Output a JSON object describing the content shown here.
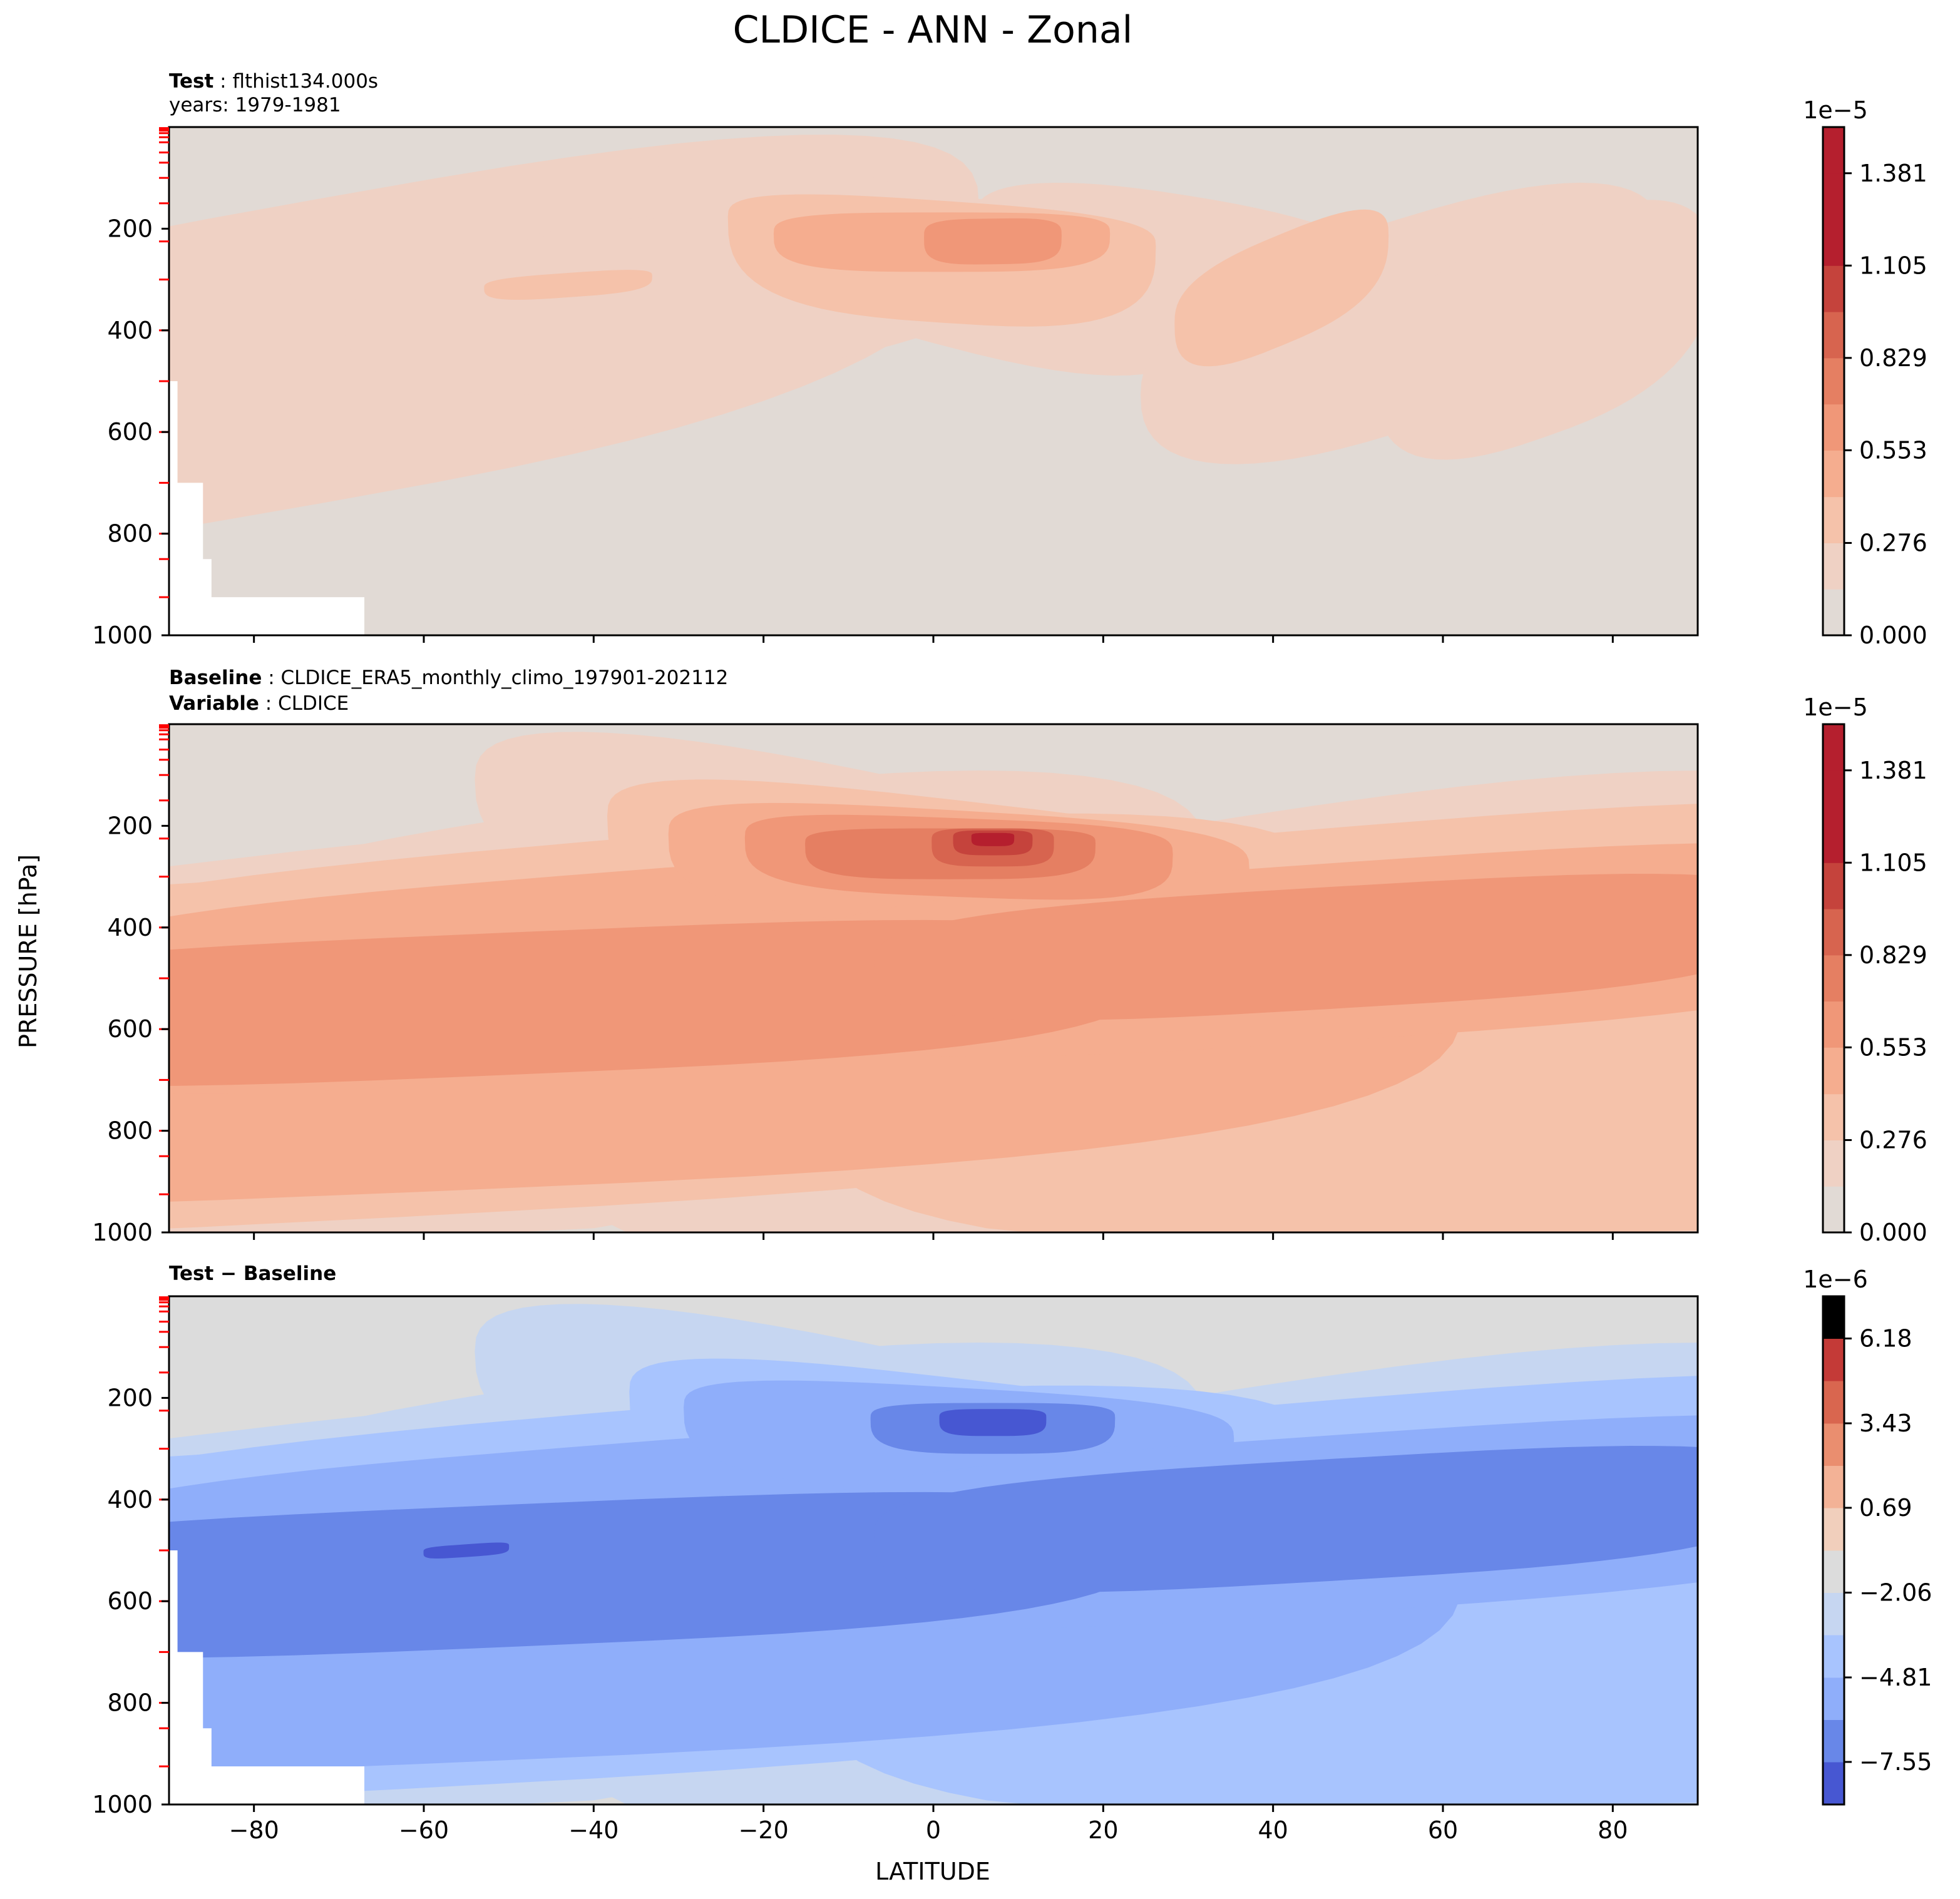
{
  "figure_title": "CLDICE - ANN - Zonal",
  "colors": {
    "seq": [
      "#e1dad5",
      "#efd1c4",
      "#f5c2aa",
      "#f5ad8f",
      "#f09778",
      "#e57f62",
      "#d7644f",
      "#c5433c",
      "#b51f2e"
    ],
    "diff": [
      "#4757d2",
      "#6887e8",
      "#8faefa",
      "#a8c4fe",
      "#c6d6f1",
      "#dcdcdc",
      "#f1cfbc",
      "#f3b296",
      "#ea8e6f",
      "#d9664f",
      "#c43a37"
    ],
    "tick_red": "#ff0000",
    "blank": "#ffffff"
  },
  "chart_data": [
    {
      "id": "test",
      "type": "contourf",
      "label_bold": "Test",
      "label_text": "flthist134.000s",
      "label2": "years: 1979-1981",
      "xlabel": "",
      "ylabel": "",
      "xlim": [
        -90,
        90
      ],
      "ylim": [
        1000,
        0
      ],
      "xticks": [
        -80,
        -60,
        -40,
        -20,
        0,
        20,
        40,
        60,
        80
      ],
      "xtick_labels": [],
      "yticks": [
        200,
        400,
        600,
        800,
        1000
      ],
      "ytick_labels": [
        "200",
        "400",
        "600",
        "800",
        "1000"
      ],
      "colorbar": {
        "exponent": "1e−5",
        "levels": [
          0,
          0.138,
          0.276,
          0.414,
          0.553,
          0.691,
          0.829,
          0.967,
          1.105,
          1.243,
          1.381,
          1.519
        ],
        "tick_labels": [
          "0.000",
          "0.276",
          "0.553",
          "0.829",
          "1.105",
          "1.381"
        ],
        "tick_values": [
          0,
          0.276,
          0.553,
          0.829,
          1.105,
          1.381
        ]
      },
      "fields": [
        {
          "level": 1,
          "blobs": [
            [
              -72,
              390,
              430,
              250,
              350,
              -60,
              160,
              1.4
            ]
          ]
        },
        {
          "level": 1,
          "blobs": [
            [
              -50,
              380,
              290,
              160,
              240,
              -45,
              145,
              1.2
            ]
          ]
        },
        {
          "level": 1,
          "blobs": [
            [
              -28,
              300,
              230,
              130,
              200,
              -30,
              120,
              1.2
            ]
          ]
        },
        {
          "level": 1,
          "blobs": [
            [
              0,
              215,
              180,
              85,
              210,
              40,
              150,
              1.3
            ]
          ]
        },
        {
          "level": 1,
          "blobs": [
            [
              30,
              245,
              140,
              110,
              180,
              20,
              140,
              1.2
            ]
          ]
        },
        {
          "level": 1,
          "blobs": [
            [
              55,
              370,
              170,
              190,
              230,
              -45,
              145,
              1.2
            ]
          ]
        },
        {
          "level": 1,
          "blobs": [
            [
              72,
              390,
              110,
              200,
              220,
              -40,
              120,
              1.3
            ]
          ]
        },
        {
          "level": 2,
          "blobs": [
            [
              1,
              205,
              140,
              60,
              180,
              15,
              80,
              1.5
            ]
          ]
        },
        {
          "level": 2,
          "blobs": [
            [
              41,
              300,
              70,
              90,
              130,
              -40,
              90,
              1.4
            ]
          ]
        },
        {
          "level": 2,
          "blobs": [
            [
              -43,
              305,
              55,
              18,
              30,
              -40,
              12,
              1.6
            ]
          ]
        },
        {
          "level": 3,
          "blobs": [
            [
              1,
              210,
              110,
              42,
              75,
              0,
              45,
              1.7
            ]
          ]
        },
        {
          "level": 4,
          "blobs": [
            [
              7,
              215,
              45,
              35,
              55,
              -2,
              36,
              1.8
            ]
          ]
        }
      ],
      "blank": [
        [
          -90,
          500,
          1000,
          -89,
          700,
          -88,
          850,
          -85,
          925,
          -67,
          1000
        ]
      ]
    },
    {
      "id": "baseline",
      "type": "contourf",
      "label_bold": "Baseline",
      "label_text": "CLDICE_ERA5_monthly_climo_197901-202112",
      "label2_bold": "Variable",
      "label2_text": "CLDICE",
      "xlabel": "",
      "ylabel": "PRESSURE [hPa]",
      "xlim": [
        -90,
        90
      ],
      "ylim": [
        1000,
        0
      ],
      "xticks": [
        -80,
        -60,
        -40,
        -20,
        0,
        20,
        40,
        60,
        80
      ],
      "xtick_labels": [],
      "yticks": [
        200,
        400,
        600,
        800,
        1000
      ],
      "ytick_labels": [
        "200",
        "400",
        "600",
        "800",
        "1000"
      ],
      "colorbar": {
        "exponent": "1e−5",
        "levels": [
          0,
          0.138,
          0.276,
          0.414,
          0.553,
          0.691,
          0.829,
          0.967,
          1.105,
          1.243,
          1.381,
          1.519
        ],
        "tick_labels": [
          "0.000",
          "0.276",
          "0.553",
          "0.829",
          "1.105",
          "1.381"
        ],
        "tick_values": [
          0,
          0.276,
          0.553,
          0.829,
          1.105,
          1.381
        ]
      },
      "fields": [
        {
          "level": 1,
          "blobs": [
            [
              -75,
              650,
              600,
              400,
              420,
              -50,
              170,
              1.2
            ]
          ]
        },
        {
          "level": 1,
          "blobs": [
            [
              -40,
              420,
              400,
              260,
              300,
              -45,
              160,
              1.2
            ]
          ]
        },
        {
          "level": 1,
          "blobs": [
            [
              0,
              300,
              300,
              180,
              260,
              40,
              200,
              1.3
            ]
          ]
        },
        {
          "level": 1,
          "blobs": [
            [
              45,
              420,
              400,
              260,
              300,
              -45,
              160,
              1.2
            ]
          ]
        },
        {
          "level": 1,
          "blobs": [
            [
              80,
              650,
              700,
              380,
              450,
              -50,
              120,
              1.2
            ]
          ]
        },
        {
          "level": 2,
          "blobs": [
            [
              -63,
              620,
              750,
              330,
              350,
              -45,
              110,
              1.4
            ]
          ]
        },
        {
          "level": 2,
          "blobs": [
            [
              -40,
              450,
              480,
              220,
              280,
              -45,
              115,
              1.4
            ]
          ]
        },
        {
          "level": 2,
          "blobs": [
            [
              3,
              260,
              230,
              110,
              210,
              30,
              110,
              1.5
            ]
          ]
        },
        {
          "level": 2,
          "blobs": [
            [
              50,
              430,
              480,
              230,
              260,
              -40,
              120,
              1.4
            ]
          ]
        },
        {
          "level": 2,
          "blobs": [
            [
              78,
              650,
              520,
              330,
              360,
              -60,
              60,
              1.3
            ]
          ]
        },
        {
          "level": 3,
          "blobs": [
            [
              -60,
              620,
              680,
              260,
              300,
              -45,
              80,
              1.5
            ]
          ]
        },
        {
          "level": 3,
          "blobs": [
            [
              -45,
              470,
              380,
              170,
              220,
              -45,
              85,
              1.5
            ]
          ]
        },
        {
          "level": 3,
          "blobs": [
            [
              3,
              250,
              190,
              80,
              150,
              20,
              70,
              1.6
            ]
          ]
        },
        {
          "level": 3,
          "blobs": [
            [
              50,
              430,
              400,
              160,
              190,
              -40,
              85,
              1.5
            ]
          ]
        },
        {
          "level": 4,
          "blobs": [
            [
              -50,
              530,
              420,
              120,
              160,
              -45,
              50,
              1.6
            ]
          ]
        },
        {
          "level": 4,
          "blobs": [
            [
              3,
              240,
              140,
              55,
              100,
              15,
              45,
              1.7
            ]
          ]
        },
        {
          "level": 4,
          "blobs": [
            [
              47,
              420,
              300,
              100,
              140,
              -40,
              55,
              1.6
            ]
          ]
        },
        {
          "level": 5,
          "blobs": [
            [
              2,
              235,
              95,
              30,
              70,
              0,
              30,
              1.8
            ]
          ]
        },
        {
          "level": 6,
          "blobs": [
            [
              7,
              230,
              40,
              25,
              50,
              0,
              25,
              1.9
            ]
          ]
        },
        {
          "level": 7,
          "blobs": [
            [
              7,
              225,
              26,
              16,
              33,
              0,
              17,
              2.0
            ]
          ]
        },
        {
          "level": 8,
          "blobs": [
            [
              7,
              222,
              14,
              8,
              18,
              0,
              8,
              2.2
            ]
          ]
        }
      ],
      "blank": []
    },
    {
      "id": "diff",
      "type": "contourf",
      "label_bold": "Test − Baseline",
      "xlabel": "LATITUDE",
      "ylabel": "",
      "xlim": [
        -90,
        90
      ],
      "ylim": [
        1000,
        0
      ],
      "xticks": [
        -80,
        -60,
        -40,
        -20,
        0,
        20,
        40,
        60,
        80
      ],
      "xtick_labels": [
        "−80",
        "−60",
        "−40",
        "−20",
        "0",
        "20",
        "40",
        "60",
        "80"
      ],
      "yticks": [
        200,
        400,
        600,
        800,
        1000
      ],
      "ytick_labels": [
        "200",
        "400",
        "600",
        "800",
        "1000"
      ],
      "colorbar": {
        "exponent": "1e−6",
        "levels": [
          -8.93,
          -7.55,
          -6.18,
          -4.81,
          -3.43,
          -2.06,
          -0.69,
          0.69,
          2.06,
          3.43,
          4.81,
          6.18,
          7.55
        ],
        "tick_labels": [
          "−7.55",
          "−4.81",
          "−2.06",
          "0.69",
          "3.43",
          "6.18"
        ],
        "tick_values": [
          -7.55,
          -4.81,
          -2.06,
          0.69,
          3.43,
          6.18
        ]
      },
      "fields": [
        {
          "level": 4,
          "blobs": [
            [
              -75,
              650,
              600,
              400,
              420,
              -50,
              170,
              1.2
            ]
          ]
        },
        {
          "level": 4,
          "blobs": [
            [
              -40,
              420,
              400,
              260,
              300,
              -45,
              160,
              1.2
            ]
          ]
        },
        {
          "level": 4,
          "blobs": [
            [
              0,
              300,
              300,
              180,
              260,
              40,
              200,
              1.3
            ]
          ]
        },
        {
          "level": 4,
          "blobs": [
            [
              45,
              420,
              400,
              260,
              300,
              -45,
              160,
              1.2
            ]
          ]
        },
        {
          "level": 4,
          "blobs": [
            [
              80,
              650,
              700,
              380,
              450,
              -50,
              120,
              1.2
            ]
          ]
        },
        {
          "level": 3,
          "blobs": [
            [
              -63,
              620,
              750,
              330,
              350,
              -45,
              110,
              1.4
            ]
          ]
        },
        {
          "level": 3,
          "blobs": [
            [
              -40,
              450,
              480,
              220,
              280,
              -45,
              115,
              1.4
            ]
          ]
        },
        {
          "level": 3,
          "blobs": [
            [
              2,
              260,
              210,
              100,
              190,
              30,
              100,
              1.5
            ]
          ]
        },
        {
          "level": 3,
          "blobs": [
            [
              50,
              430,
              480,
              230,
              260,
              -40,
              120,
              1.4
            ]
          ]
        },
        {
          "level": 3,
          "blobs": [
            [
              78,
              650,
              520,
              330,
              360,
              -60,
              60,
              1.3
            ]
          ]
        },
        {
          "level": 2,
          "blobs": [
            [
              -60,
              620,
              680,
              260,
              300,
              -45,
              80,
              1.5
            ]
          ]
        },
        {
          "level": 2,
          "blobs": [
            [
              -45,
              470,
              380,
              170,
              220,
              -45,
              85,
              1.5
            ]
          ]
        },
        {
          "level": 2,
          "blobs": [
            [
              3,
              250,
              180,
              70,
              140,
              20,
              65,
              1.6
            ]
          ]
        },
        {
          "level": 2,
          "blobs": [
            [
              50,
              430,
              400,
              160,
              190,
              -40,
              85,
              1.5
            ]
          ]
        },
        {
          "level": 1,
          "blobs": [
            [
              -50,
              530,
              420,
              120,
              160,
              -45,
              50,
              1.6
            ]
          ]
        },
        {
          "level": 1,
          "blobs": [
            [
              7,
              240,
              80,
              30,
              70,
              0,
              30,
              1.7
            ]
          ]
        },
        {
          "level": 1,
          "blobs": [
            [
              47,
              420,
              300,
              100,
              140,
              -40,
              55,
              1.6
            ]
          ]
        },
        {
          "level": 0,
          "blobs": [
            [
              -55,
              498,
              28,
              10,
              15,
              -40,
              6,
              2.0
            ]
          ]
        },
        {
          "level": 0,
          "blobs": [
            [
              7,
              240,
              35,
              18,
              35,
              0,
              18,
              1.9
            ]
          ]
        }
      ],
      "blank": [
        [
          -90,
          500,
          1000,
          -89,
          700,
          -88,
          850,
          -85,
          925,
          -67,
          1000
        ]
      ]
    }
  ]
}
